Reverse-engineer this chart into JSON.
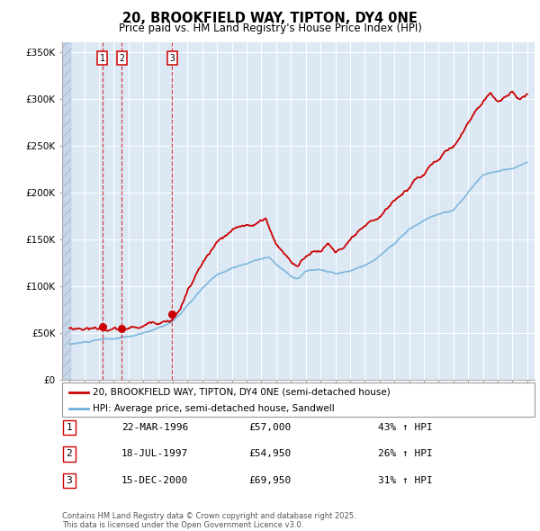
{
  "title": "20, BROOKFIELD WAY, TIPTON, DY4 0NE",
  "subtitle": "Price paid vs. HM Land Registry's House Price Index (HPI)",
  "legend_line1": "20, BROOKFIELD WAY, TIPTON, DY4 0NE (semi-detached house)",
  "legend_line2": "HPI: Average price, semi-detached house, Sandwell",
  "purchases": [
    {
      "num": 1,
      "date": "22-MAR-1996",
      "price": 57000,
      "hpi": "43% ↑ HPI",
      "year": 1996.22
    },
    {
      "num": 2,
      "date": "18-JUL-1997",
      "price": 54950,
      "hpi": "26% ↑ HPI",
      "year": 1997.54
    },
    {
      "num": 3,
      "date": "15-DEC-2000",
      "price": 69950,
      "hpi": "31% ↑ HPI",
      "year": 2000.96
    }
  ],
  "footer": "Contains HM Land Registry data © Crown copyright and database right 2025.\nThis data is licensed under the Open Government Licence v3.0.",
  "hpi_color": "#6baed6",
  "price_color": "#cc0000",
  "ylim": [
    0,
    360000
  ],
  "yticks": [
    0,
    50000,
    100000,
    150000,
    200000,
    250000,
    300000,
    350000
  ],
  "xlim_start": 1993.5,
  "xlim_end": 2025.5
}
